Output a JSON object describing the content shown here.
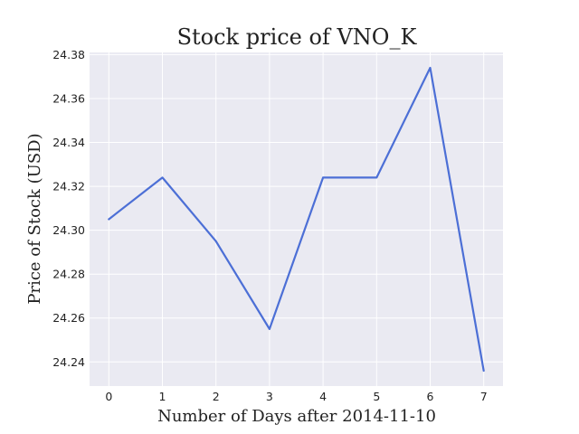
{
  "chart_data": {
    "type": "line",
    "title": "Stock price of VNO_K",
    "xlabel": "Number of Days after 2014-11-10",
    "ylabel": "Price of Stock (USD)",
    "x": [
      0,
      1,
      2,
      3,
      4,
      5,
      6,
      7
    ],
    "series": [
      {
        "values": [
          24.305,
          24.324,
          24.295,
          24.255,
          24.324,
          24.324,
          24.374,
          24.236
        ]
      }
    ],
    "xlim": [
      -0.36,
      7.36
    ],
    "ylim": [
      24.229,
      24.381
    ],
    "x_ticks": [
      0,
      1,
      2,
      3,
      4,
      5,
      6,
      7
    ],
    "x_tick_labels": [
      "0",
      "1",
      "2",
      "3",
      "4",
      "5",
      "6",
      "7"
    ],
    "y_ticks": [
      24.24,
      24.26,
      24.28,
      24.3,
      24.32,
      24.34,
      24.36,
      24.38
    ],
    "y_tick_labels": [
      "24.24",
      "24.26",
      "24.28",
      "24.30",
      "24.32",
      "24.34",
      "24.36",
      "24.38"
    ],
    "grid": true,
    "legend": "none",
    "colors": {
      "line": "#4c6fd6",
      "plot_background": "#eaeaf2",
      "grid": "#ffffff",
      "text": "#222222"
    }
  }
}
